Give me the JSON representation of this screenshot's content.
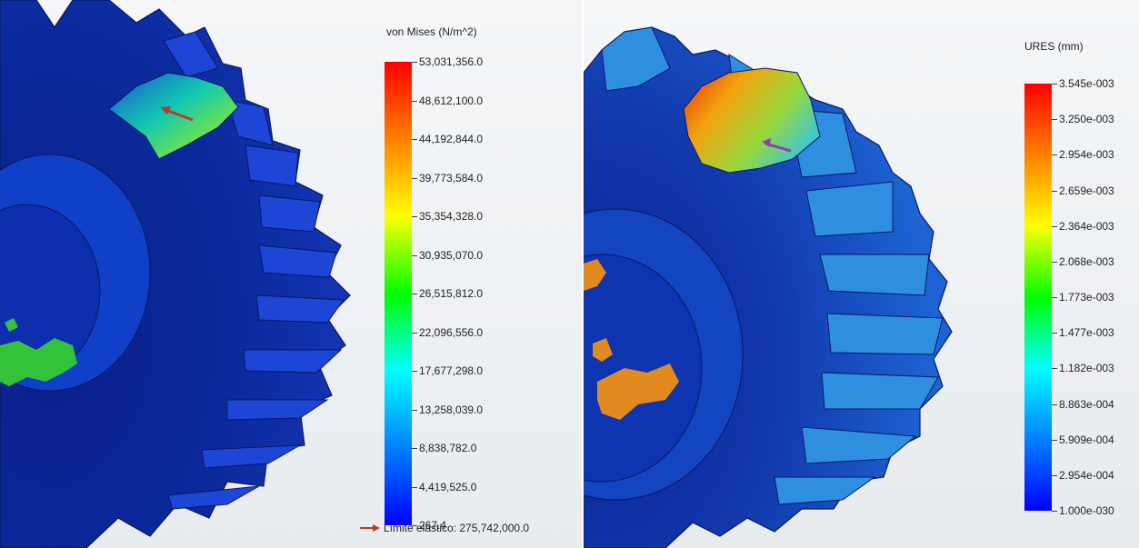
{
  "panels": {
    "stress": {
      "legend_title": "von Mises (N/m^2)",
      "legend_values": [
        "53,031,356.0",
        "48,612,100.0",
        "44,192,844.0",
        "39,773,584.0",
        "35,354,328.0",
        "30,935,070.0",
        "26,515,812.0",
        "22,096,556.0",
        "17,677,298.0",
        "13,258,039.0",
        "8,838,782.0",
        "4,419,525.0",
        "267.4"
      ],
      "yield_label": "Límite elástico: 275,742,000.0",
      "arrow_color": "#c0392b"
    },
    "displacement": {
      "legend_title": "URES (mm)",
      "legend_values": [
        "3.545e-003",
        "3.250e-003",
        "2.954e-003",
        "2.659e-003",
        "2.364e-003",
        "2.068e-003",
        "1.773e-003",
        "1.477e-003",
        "1.182e-003",
        "8.863e-004",
        "5.909e-004",
        "2.954e-004",
        "1.000e-030"
      ],
      "arrow_color": "#8e44ad"
    }
  },
  "colormap": [
    "#ff0000",
    "#ff8000",
    "#ffff00",
    "#00ff00",
    "#00ffff",
    "#0080ff",
    "#0000ff"
  ]
}
